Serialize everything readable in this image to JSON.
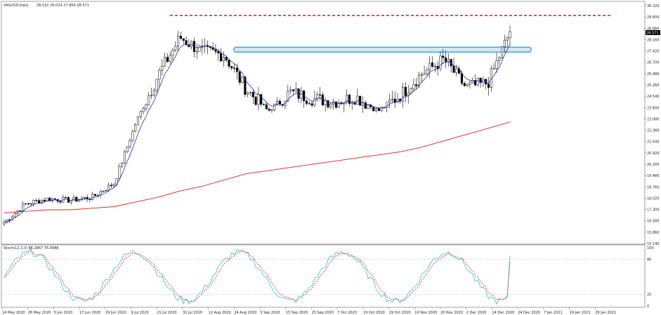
{
  "chart_header": {
    "symbol": "XAGUSD,Daily",
    "ohlc": "28.532 29.014 27.954 28.571"
  },
  "price_axis": {
    "ticks": [
      "30.320",
      "29.600",
      "28.880",
      "28.160",
      "27.420",
      "26.700",
      "25.980",
      "25.260",
      "24.540",
      "23.800",
      "23.080",
      "22.360",
      "21.640",
      "20.920",
      "20.200",
      "19.480",
      "18.760",
      "18.020",
      "17.300",
      "16.580",
      "15.860",
      "15.140"
    ],
    "current_price": "28.571"
  },
  "oscillator": {
    "label": "Stoch(12,3,3) 86.2867 76.9088",
    "levels": [
      "100",
      "80",
      "20",
      "0"
    ]
  },
  "time_axis": {
    "labels": [
      "14 May 2020",
      "26 May 2020",
      "5 Jun 2020",
      "17 Jun 2020",
      "29 Jun 2020",
      "9 Jul 2020",
      "21 Jul 2020",
      "31 Jul 2020",
      "12 Aug 2020",
      "24 Aug 2020",
      "3 Sep 2020",
      "15 Sep 2020",
      "25 Sep 2020",
      "7 Oct 2020",
      "19 Oct 2020",
      "29 Oct 2020",
      "10 Nov 2020",
      "20 Nov 2020",
      "2 Dec 2020",
      "14 Dec 2020",
      "24 Dec 2020",
      "7 Jan 2021",
      "19 Jan 2021",
      "29 Jan 2021"
    ]
  },
  "colors": {
    "up_candle": "#ffffff",
    "down_candle": "#000000",
    "fast_ma": "#1f2fb8",
    "slow_ma": "#e02020",
    "stoch_main": "#2fc4c4",
    "stoch_signal": "#e02020",
    "resistance_box": "#3da8e0",
    "high_line": "#c8302e"
  },
  "chart_data": {
    "type": "line",
    "instrument": "XAGUSD",
    "timeframe": "Daily",
    "x": [
      "14 May 2020",
      "26 May 2020",
      "5 Jun 2020",
      "17 Jun 2020",
      "29 Jun 2020",
      "9 Jul 2020",
      "21 Jul 2020",
      "31 Jul 2020",
      "12 Aug 2020",
      "24 Aug 2020",
      "3 Sep 2020",
      "15 Sep 2020",
      "25 Sep 2020",
      "7 Oct 2020",
      "19 Oct 2020",
      "29 Oct 2020",
      "10 Nov 2020",
      "20 Nov 2020",
      "2 Dec 2020",
      "14 Dec 2020",
      "24 Dec 2020",
      "7 Jan 2021",
      "19 Jan 2021",
      "29 Jan 2021"
    ],
    "series": [
      {
        "values": [
          16.4,
          17.6,
          17.9,
          17.8,
          18.0,
          18.9,
          22.8,
          25.8,
          28.2,
          27.3,
          27.1,
          24.9,
          23.5,
          24.7,
          24.3,
          24.1,
          24.4,
          23.5,
          24.5,
          25.9,
          26.8,
          25.0,
          25.3,
          28.57
        ]
      },
      {
        "values": [
          17.0,
          17.1,
          17.2,
          17.2,
          17.3,
          17.4,
          17.7,
          18.0,
          18.4,
          18.7,
          19.1,
          19.5,
          19.7,
          19.9,
          20.1,
          20.3,
          20.5,
          20.7,
          20.9,
          21.2,
          21.6,
          22.0,
          22.4,
          22.8
        ]
      }
    ],
    "ylim": [
      15.14,
      30.32
    ],
    "horizontal_levels": [
      29.6,
      27.42
    ],
    "last_price": 28.571,
    "oscillator": {
      "name": "Stoch(12,3,3)",
      "main": 86.2867,
      "signal": 76.9088,
      "ylim": [
        0,
        100
      ],
      "levels": [
        20,
        80
      ]
    }
  }
}
